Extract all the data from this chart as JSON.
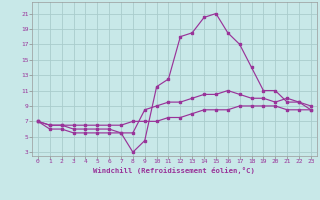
{
  "xlabel": "Windchill (Refroidissement éolien,°C)",
  "xlim": [
    -0.5,
    23.5
  ],
  "ylim": [
    2.5,
    22.5
  ],
  "yticks": [
    3,
    5,
    7,
    9,
    11,
    13,
    15,
    17,
    19,
    21
  ],
  "xticks": [
    0,
    1,
    2,
    3,
    4,
    5,
    6,
    7,
    8,
    9,
    10,
    11,
    12,
    13,
    14,
    15,
    16,
    17,
    18,
    19,
    20,
    21,
    22,
    23
  ],
  "background_color": "#c8e8e8",
  "line_color": "#993399",
  "grid_color": "#aacccc",
  "line1_x": [
    0,
    1,
    2,
    3,
    4,
    5,
    6,
    7,
    8,
    9,
    10,
    11,
    12,
    13,
    14,
    15,
    16,
    17,
    18,
    19,
    20,
    21,
    22,
    23
  ],
  "line1_y": [
    7,
    6,
    6,
    5.5,
    5.5,
    5.5,
    5.5,
    5.5,
    3,
    4.5,
    11.5,
    12.5,
    18,
    18.5,
    20.5,
    21,
    18.5,
    17,
    14,
    11,
    11,
    9.5,
    9.5,
    8.5
  ],
  "line2_x": [
    0,
    1,
    2,
    3,
    4,
    5,
    6,
    7,
    8,
    9,
    10,
    11,
    12,
    13,
    14,
    15,
    16,
    17,
    18,
    19,
    20,
    21,
    22,
    23
  ],
  "line2_y": [
    7,
    6.5,
    6.5,
    6,
    6,
    6,
    6,
    5.5,
    5.5,
    8.5,
    9,
    9.5,
    9.5,
    10,
    10.5,
    10.5,
    11,
    10.5,
    10,
    10,
    9.5,
    10,
    9.5,
    9
  ],
  "line3_x": [
    0,
    1,
    2,
    3,
    4,
    5,
    6,
    7,
    8,
    9,
    10,
    11,
    12,
    13,
    14,
    15,
    16,
    17,
    18,
    19,
    20,
    21,
    22,
    23
  ],
  "line3_y": [
    7,
    6.5,
    6.5,
    6.5,
    6.5,
    6.5,
    6.5,
    6.5,
    7,
    7,
    7,
    7.5,
    7.5,
    8,
    8.5,
    8.5,
    8.5,
    9,
    9,
    9,
    9,
    8.5,
    8.5,
    8.5
  ]
}
